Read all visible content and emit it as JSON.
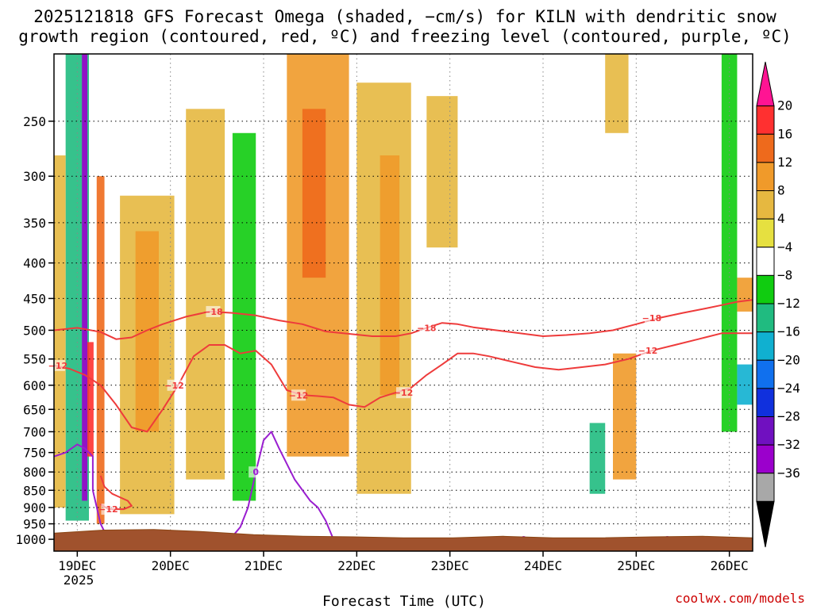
{
  "title": {
    "line1": "2025121818 GFS Forecast Omega (shaded, −cm/s) for KILN with dendritic snow",
    "line2": "growth region (contoured, red, ºC) and freezing level (contoured, purple, ºC)"
  },
  "credit": "coolwx.com/models",
  "chart_data": {
    "type": "heatmap",
    "title": "2025121818 GFS Forecast Omega (shaded, −cm/s) for KILN with dendritic snow growth region (contoured, red, ºC) and freezing level (contoured, purple, ºC)",
    "xlabel": "Forecast Time (UTC)",
    "ylabel": "",
    "x_ticks": [
      "19DEC",
      "20DEC",
      "21DEC",
      "22DEC",
      "23DEC",
      "24DEC",
      "25DEC",
      "26DEC"
    ],
    "x_tick_hours": [
      6,
      30,
      54,
      78,
      102,
      126,
      150,
      174
    ],
    "x_year_label": "2025",
    "x_range_hours": [
      0,
      180
    ],
    "y_ticks": [
      250,
      300,
      350,
      400,
      450,
      500,
      550,
      600,
      650,
      700,
      750,
      800,
      850,
      900,
      950,
      1000
    ],
    "y_range_hpa": [
      200,
      1040
    ],
    "y_scale": "log-pressure (reversed)",
    "grid": true,
    "colorbar": {
      "labels": [
        "20",
        "16",
        "12",
        "8",
        "4",
        "−4",
        "−8",
        "−12",
        "−16",
        "−20",
        "−24",
        "−28",
        "−32",
        "−36"
      ],
      "colors": [
        "#ff1493",
        "#ff3030",
        "#ee6a1c",
        "#f09a2a",
        "#e6b840",
        "#e6e040",
        "#ffffff",
        "#10cc10",
        "#20bb80",
        "#10b0d0",
        "#1070ee",
        "#1030dd",
        "#7010c0",
        "#9b00cc",
        "#a8a8a8",
        "#000000"
      ]
    },
    "dendritic_contours": [
      {
        "label": "−18",
        "label_times": [
          41,
          96,
          154
        ],
        "times": [
          0,
          6,
          12,
          16,
          20,
          24,
          28,
          34,
          40,
          46,
          52,
          58,
          64,
          70,
          76,
          82,
          88,
          92,
          96,
          100,
          104,
          108,
          114,
          120,
          126,
          132,
          138,
          144,
          150,
          156,
          162,
          168,
          172,
          176,
          180
        ],
        "pressures": [
          500,
          496,
          503,
          515,
          512,
          500,
          490,
          478,
          470,
          472,
          476,
          484,
          490,
          502,
          506,
          510,
          510,
          505,
          496,
          488,
          490,
          495,
          500,
          505,
          510,
          508,
          505,
          500,
          490,
          480,
          472,
          465,
          460,
          455,
          452
        ]
      },
      {
        "label": "−12",
        "label_times": [
          1,
          31,
          63,
          90,
          153
        ],
        "times": [
          0,
          4,
          8,
          12,
          16,
          20,
          24,
          28,
          32,
          36,
          40,
          44,
          48,
          52,
          56,
          60,
          64,
          68,
          72,
          76,
          80,
          84,
          88,
          92,
          96,
          100,
          104,
          108,
          112,
          118,
          124,
          130,
          136,
          142,
          148,
          154,
          160,
          166,
          172,
          176,
          180
        ],
        "pressures": [
          562,
          568,
          580,
          600,
          640,
          690,
          700,
          650,
          600,
          545,
          525,
          525,
          540,
          535,
          560,
          610,
          620,
          622,
          625,
          640,
          645,
          625,
          615,
          605,
          580,
          560,
          540,
          540,
          545,
          555,
          565,
          570,
          565,
          560,
          550,
          535,
          525,
          515,
          505,
          505,
          505
        ]
      },
      {
        "label": "−12",
        "label_times": [
          14
        ],
        "times": [
          12,
          13,
          15,
          17,
          19,
          20,
          18,
          14,
          12
        ],
        "pressures": [
          810,
          840,
          860,
          870,
          880,
          895,
          905,
          905,
          890
        ]
      }
    ],
    "freezing_level_contours": [
      {
        "label": "0",
        "label_times": [
          52,
          121,
          158
        ],
        "times": [
          0,
          3,
          6,
          8,
          10,
          10,
          12,
          14,
          18,
          24,
          28,
          32,
          36,
          40,
          44,
          46,
          48,
          50,
          52,
          54,
          56,
          58,
          62,
          66,
          68,
          70,
          72,
          74,
          76,
          78,
          80,
          84,
          88,
          92,
          96,
          100,
          104,
          108,
          112,
          116,
          120,
          126,
          132,
          138,
          142,
          146,
          150,
          154,
          158,
          162,
          166,
          170,
          172,
          174,
          176,
          178,
          180
        ],
        "pressures": [
          760,
          750,
          730,
          740,
          760,
          850,
          950,
          1000,
          1000,
          1000,
          1000,
          1000,
          1000,
          1000,
          1000,
          990,
          960,
          900,
          800,
          720,
          700,
          740,
          820,
          880,
          900,
          940,
          1000,
          1000,
          1000,
          1000,
          1000,
          1000,
          1000,
          1000,
          1000,
          1000,
          1000,
          1000,
          1000,
          1000,
          1000,
          1000,
          1000,
          1000,
          1000,
          1000,
          1000,
          1000,
          1000,
          1000,
          1000,
          1000,
          1000,
          1000,
          1000,
          1000,
          1000
        ]
      }
    ],
    "omega_regions": [
      {
        "t0": 3,
        "t1": 9,
        "p0": 200,
        "p1": 940,
        "value": -14
      },
      {
        "t0": 7.2,
        "t1": 8.6,
        "p0": 200,
        "p1": 880,
        "value": -36
      },
      {
        "t0": 8.6,
        "t1": 10.2,
        "p0": 520,
        "p1": 760,
        "value": 18
      },
      {
        "t0": 11,
        "t1": 13,
        "p0": 300,
        "p1": 950,
        "value": 12
      },
      {
        "t0": 0,
        "t1": 3,
        "p0": 280,
        "p1": 900,
        "value": 7
      },
      {
        "t0": 14,
        "t1": 16,
        "p0": 250,
        "p1": 700,
        "value": -6
      },
      {
        "t0": 17,
        "t1": 31,
        "p0": 320,
        "p1": 920,
        "value": 7
      },
      {
        "t0": 21,
        "t1": 27,
        "p0": 360,
        "p1": 700,
        "value": 11
      },
      {
        "t0": 34,
        "t1": 44,
        "p0": 240,
        "p1": 820,
        "value": 6
      },
      {
        "t0": 46,
        "t1": 52,
        "p0": 260,
        "p1": 880,
        "value": -12
      },
      {
        "t0": 53,
        "t1": 58,
        "p0": 220,
        "p1": 700,
        "value": -6
      },
      {
        "t0": 60,
        "t1": 76,
        "p0": 200,
        "p1": 760,
        "value": 9
      },
      {
        "t0": 64,
        "t1": 70,
        "p0": 240,
        "p1": 420,
        "value": 15
      },
      {
        "t0": 78,
        "t1": 92,
        "p0": 220,
        "p1": 860,
        "value": 6
      },
      {
        "t0": 84,
        "t1": 89,
        "p0": 280,
        "p1": 620,
        "value": 11
      },
      {
        "t0": 94,
        "t1": 100,
        "p0": 420,
        "p1": 880,
        "value": -8
      },
      {
        "t0": 96,
        "t1": 104,
        "p0": 230,
        "p1": 380,
        "value": 6
      },
      {
        "t0": 101,
        "t1": 108,
        "p0": 600,
        "p1": 860,
        "value": -6
      },
      {
        "t0": 110,
        "t1": 116,
        "p0": 220,
        "p1": 360,
        "value": -6
      },
      {
        "t0": 124,
        "t1": 128,
        "p0": 250,
        "p1": 320,
        "value": -6
      },
      {
        "t0": 130,
        "t1": 136,
        "p0": 320,
        "p1": 460,
        "value": -6
      },
      {
        "t0": 142,
        "t1": 148,
        "p0": 200,
        "p1": 260,
        "value": 5
      },
      {
        "t0": 138,
        "t1": 142,
        "p0": 680,
        "p1": 860,
        "value": -13
      },
      {
        "t0": 144,
        "t1": 150,
        "p0": 540,
        "p1": 820,
        "value": 8
      },
      {
        "t0": 151,
        "t1": 156,
        "p0": 200,
        "p1": 720,
        "value": -6
      },
      {
        "t0": 172,
        "t1": 176,
        "p0": 200,
        "p1": 700,
        "value": -10
      },
      {
        "t0": 176,
        "t1": 180,
        "p0": 560,
        "p1": 640,
        "value": -20
      },
      {
        "t0": 176,
        "t1": 180,
        "p0": 420,
        "p1": 470,
        "value": 10
      }
    ],
    "terrain_pressures": [
      980,
      970,
      968,
      975,
      985,
      990,
      992,
      995,
      995,
      990,
      995,
      995,
      992,
      990,
      995
    ]
  }
}
